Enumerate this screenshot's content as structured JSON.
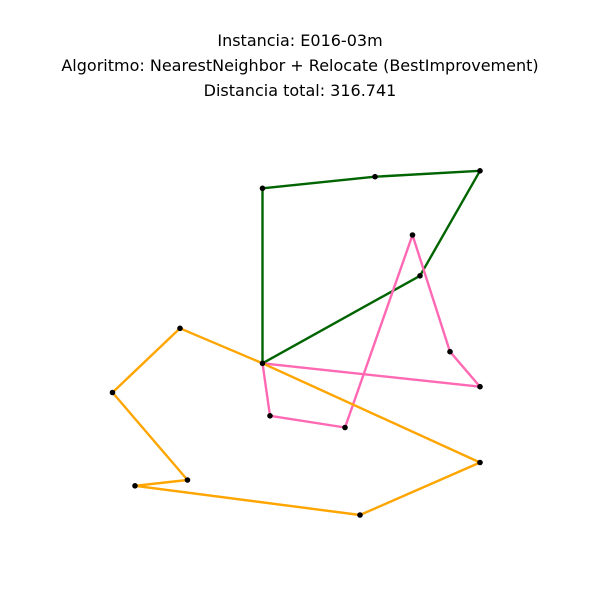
{
  "chart_data": {
    "type": "scatter",
    "title_lines": [
      "Instancia: E016-03m",
      "Algoritmo: NearestNeighbor + Relocate (BestImprovement)",
      "Distancia total: 316.741"
    ],
    "axes_visible": false,
    "grid": false,
    "nodes": {
      "depot": [
        30,
        40
      ],
      "n1": [
        30,
        70
      ],
      "n2": [
        45,
        72
      ],
      "n3": [
        59,
        73
      ],
      "n4": [
        51,
        55
      ],
      "n5": [
        55,
        42
      ],
      "n6": [
        59,
        36
      ],
      "n7": [
        31,
        31
      ],
      "n8": [
        41,
        29
      ],
      "n9": [
        59,
        23
      ],
      "n10": [
        43,
        14
      ],
      "n11": [
        13,
        19
      ],
      "n12": [
        20,
        20
      ],
      "n13": [
        10,
        35
      ],
      "n14": [
        19,
        46
      ],
      "n15": [
        50,
        62
      ]
    },
    "routes": [
      {
        "color": "#006400",
        "path": [
          "depot",
          "n1",
          "n2",
          "n3",
          "n4",
          "depot"
        ]
      },
      {
        "color": "#ff69b4",
        "path": [
          "depot",
          "n6",
          "n5",
          "n15",
          "n8",
          "n7",
          "depot"
        ]
      },
      {
        "color": "#ffa500",
        "path": [
          "depot",
          "n14",
          "n13",
          "n12",
          "n11",
          "n10",
          "n9",
          "depot"
        ]
      }
    ],
    "xlim": [
      5,
      65
    ],
    "ylim": [
      5,
      80
    ]
  }
}
